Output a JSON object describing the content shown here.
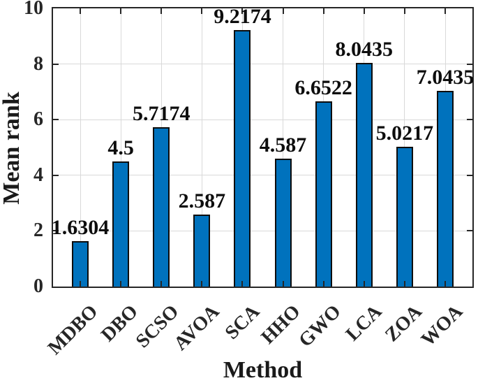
{
  "chart_data": {
    "type": "bar",
    "title": "",
    "xlabel": "Method",
    "ylabel": "Mean rank",
    "categories": [
      "MDBO",
      "DBO",
      "SCSO",
      "AVOA",
      "SCA",
      "HHO",
      "GWO",
      "LCA",
      "ZOA",
      "WOA"
    ],
    "values": [
      1.6304,
      4.5,
      5.7174,
      2.587,
      9.2174,
      4.587,
      6.6522,
      8.0435,
      5.0217,
      7.0435
    ],
    "bar_value_labels": [
      "1.6304",
      "4.5",
      "5.7174",
      "2.587",
      "9.2174",
      "4.587",
      "6.6522",
      "8.0435",
      "5.0217",
      "7.0435"
    ],
    "ylim": [
      0,
      10
    ],
    "yticks": [
      "0",
      "2",
      "4",
      "6",
      "8",
      "10"
    ],
    "grid": "on",
    "legend": "none",
    "x_tick_rotation_deg": 45,
    "bar_width_fraction": 0.4,
    "bar_color": "#0072BD",
    "bar_edge_color": "#0d0d0d",
    "axis_color": "#262626",
    "grid_color": "#d9d9d9",
    "tick_text_color": "#262626",
    "label_text_color": "#1a1a1a"
  }
}
